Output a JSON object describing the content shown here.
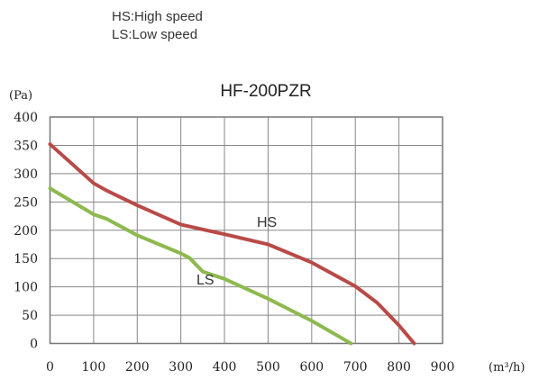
{
  "legend_notes": [
    "HS:High speed",
    "LS:Low speed"
  ],
  "chart_data": {
    "type": "line",
    "title": "HF-200PZR",
    "xlabel": "(m³/h)",
    "ylabel": "(Pa)",
    "xlim": [
      0,
      900
    ],
    "ylim": [
      0,
      400
    ],
    "xticks": [
      0,
      100,
      200,
      300,
      400,
      500,
      600,
      700,
      800,
      900
    ],
    "yticks": [
      0,
      50,
      100,
      150,
      200,
      250,
      300,
      350,
      400
    ],
    "grid": true,
    "series": [
      {
        "name": "HS",
        "color": "#b94a48",
        "x": [
          0,
          100,
          130,
          200,
          300,
          370,
          400,
          500,
          600,
          700,
          750,
          800,
          835
        ],
        "y": [
          352,
          283,
          270,
          244,
          210,
          198,
          193,
          175,
          143,
          101,
          72,
          32,
          0
        ]
      },
      {
        "name": "LS",
        "color": "#8db94e",
        "x": [
          0,
          100,
          130,
          200,
          300,
          320,
          350,
          400,
          500,
          600,
          690
        ],
        "y": [
          274,
          228,
          220,
          191,
          159,
          151,
          127,
          114,
          79,
          40,
          0
        ]
      }
    ]
  }
}
